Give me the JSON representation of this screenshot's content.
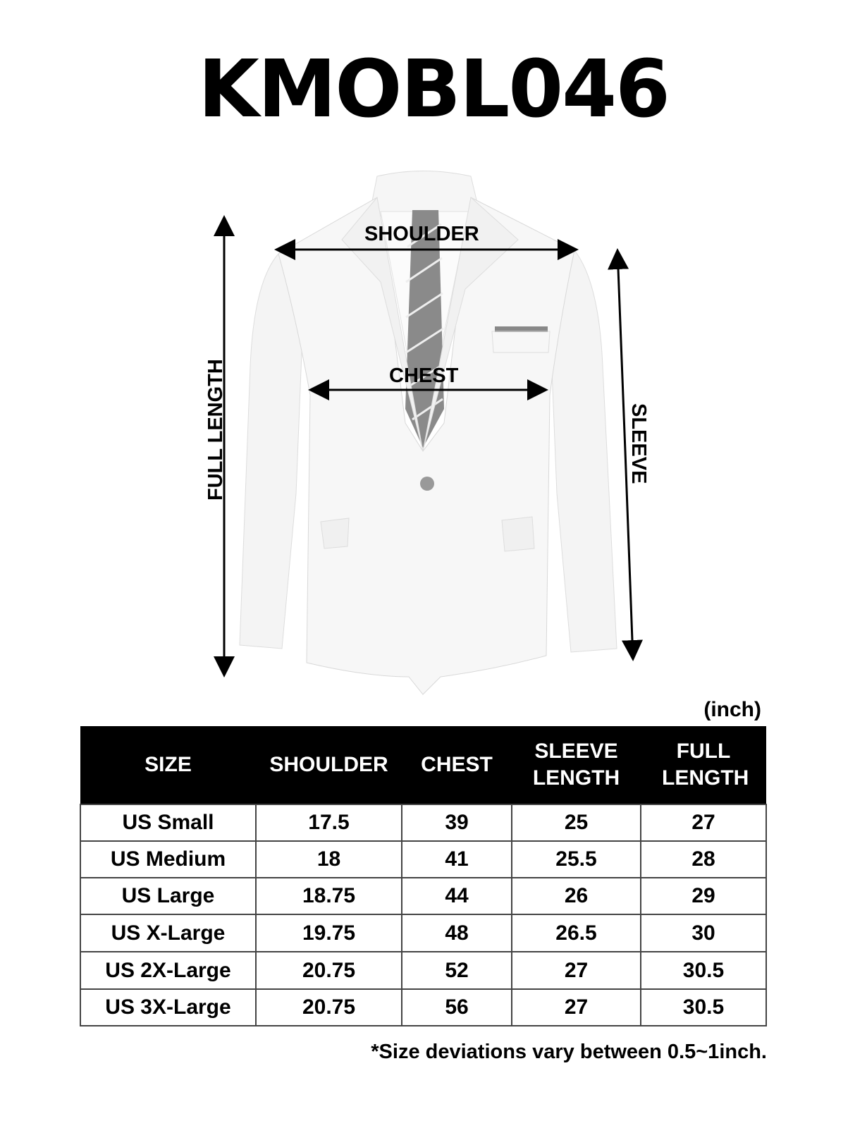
{
  "title": "KMOBL046",
  "diagram": {
    "labels": {
      "shoulder": "SHOULDER",
      "chest": "CHEST",
      "full_length": "FULL LENGTH",
      "sleeve": "SLEEVE"
    }
  },
  "unit": "(inch)",
  "table": {
    "headers": [
      "SIZE",
      "SHOULDER",
      "CHEST",
      "SLEEVE LENGTH",
      "FULL LENGTH"
    ],
    "rows": [
      [
        "US Small",
        "17.5",
        "39",
        "25",
        "27"
      ],
      [
        "US Medium",
        "18",
        "41",
        "25.5",
        "28"
      ],
      [
        "US Large",
        "18.75",
        "44",
        "26",
        "29"
      ],
      [
        "US X-Large",
        "19.75",
        "48",
        "26.5",
        "30"
      ],
      [
        "US 2X-Large",
        "20.75",
        "52",
        "27",
        "30.5"
      ],
      [
        "US 3X-Large",
        "20.75",
        "56",
        "27",
        "30.5"
      ]
    ]
  },
  "note": "*Size deviations vary between 0.5~1inch."
}
